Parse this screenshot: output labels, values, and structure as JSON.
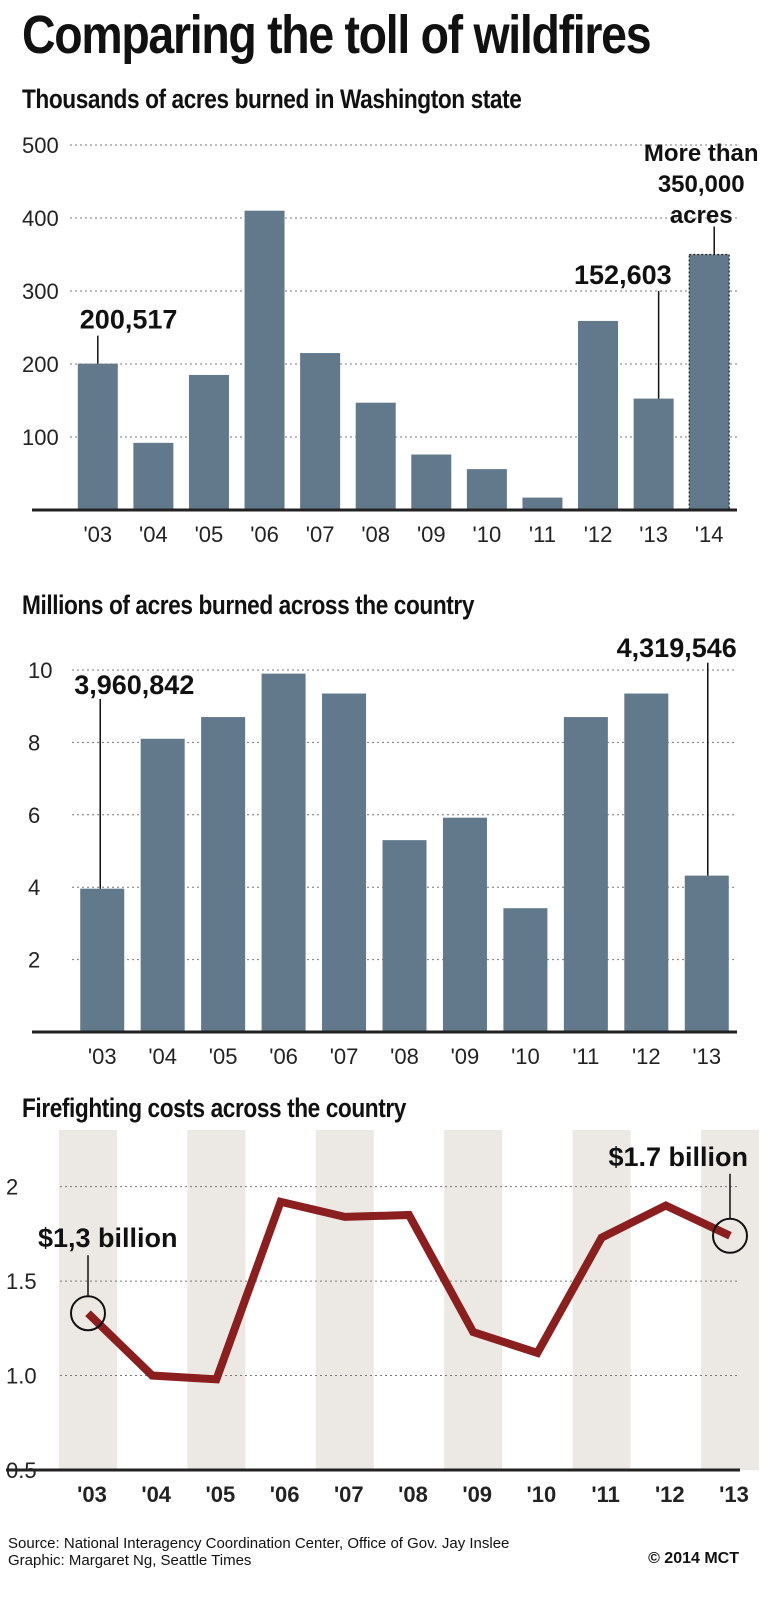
{
  "title": "Comparing the toll of wildfires",
  "chart_data": [
    {
      "type": "bar",
      "title": "Thousands of acres burned in Washington state",
      "xlabel": "",
      "ylabel": "",
      "categories": [
        "'03",
        "'04",
        "'05",
        "'06",
        "'07",
        "'08",
        "'09",
        "'10",
        "'11",
        "'12",
        "'13",
        "'14"
      ],
      "values": [
        200.5,
        92,
        185,
        410,
        215,
        147,
        76,
        56,
        17,
        259,
        152.6,
        350
      ],
      "ylim": [
        0,
        500
      ],
      "yticks": [
        100,
        200,
        300,
        400,
        500
      ],
      "grid": true,
      "estimated_last_bar": true,
      "annotations": [
        {
          "category": "'03",
          "text": "200,517"
        },
        {
          "category": "'13",
          "text": "152,603"
        },
        {
          "category": "'14",
          "lines": [
            "More than",
            "350,000",
            "acres"
          ]
        }
      ],
      "bar_color": "#61798a"
    },
    {
      "type": "bar",
      "title": "Millions of acres burned across the country",
      "xlabel": "",
      "ylabel": "",
      "categories": [
        "'03",
        "'04",
        "'05",
        "'06",
        "'07",
        "'08",
        "'09",
        "'10",
        "'11",
        "'12",
        "'13"
      ],
      "values": [
        3.96,
        8.1,
        8.7,
        9.9,
        9.35,
        5.3,
        5.92,
        3.42,
        8.7,
        9.35,
        4.32
      ],
      "ylim": [
        0,
        10
      ],
      "yticks": [
        2,
        4,
        6,
        8,
        10
      ],
      "grid": true,
      "annotations": [
        {
          "category": "'03",
          "text": "3,960,842"
        },
        {
          "category": "'13",
          "text": "4,319,546"
        }
      ],
      "bar_color": "#61798a"
    },
    {
      "type": "line",
      "title": "Firefighting costs across the country",
      "xlabel": "",
      "ylabel": "",
      "categories": [
        "'03",
        "'04",
        "'05",
        "'06",
        "'07",
        "'08",
        "'09",
        "'10",
        "'11",
        "'12",
        "'13"
      ],
      "values": [
        1.33,
        1.0,
        0.98,
        1.92,
        1.84,
        1.85,
        1.23,
        1.12,
        1.73,
        1.9,
        1.74
      ],
      "ylim": [
        0.5,
        2.3
      ],
      "yticks": [
        0.5,
        1.0,
        1.5,
        2
      ],
      "ytick_labels": [
        "0.5",
        "1.0",
        "1.5",
        "2"
      ],
      "grid": true,
      "annotations": [
        {
          "category": "'03",
          "text": "$1,3 billion"
        },
        {
          "category": "'13",
          "text": "$1.7 billion"
        }
      ],
      "line_color": "#8b1e1e"
    }
  ],
  "footer": {
    "source": "Source: National Interagency Coordination Center, Office of Gov. Jay Inslee",
    "graphic": "Graphic: Margaret Ng, Seattle Times",
    "copyright": "© 2014 MCT"
  }
}
